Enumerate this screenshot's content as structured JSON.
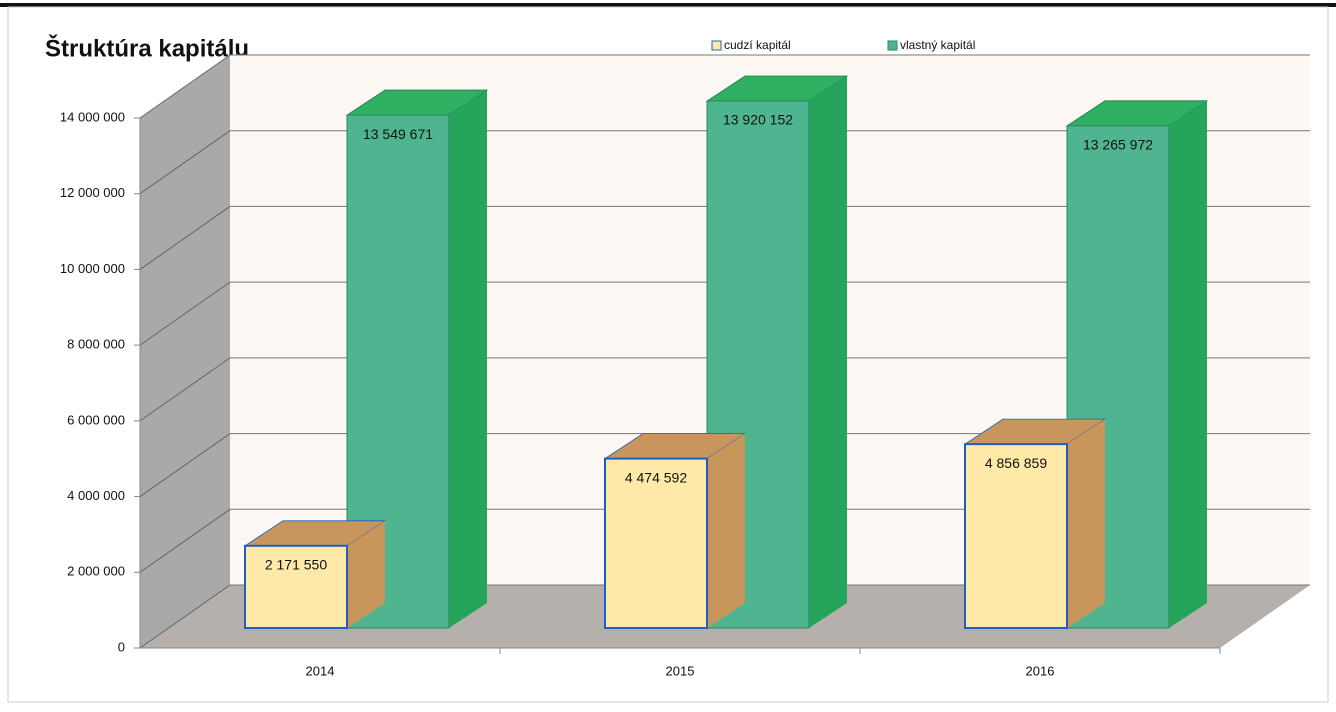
{
  "chart_data": {
    "type": "bar3d",
    "title": "Štruktúra kapitálu",
    "categories": [
      "2014",
      "2015",
      "2016"
    ],
    "series": [
      {
        "name": "cudzí kapitál",
        "color": "#ffe9a8",
        "values": [
          2171550,
          4474592,
          4856859
        ],
        "value_labels": [
          "2 171 550",
          "4 474 592",
          "4 856 859"
        ]
      },
      {
        "name": "vlastný kapitál",
        "color": "#4fb590",
        "values": [
          13549671,
          13920152,
          13265972
        ],
        "value_labels": [
          "13 549 671",
          "13 920 152",
          "13 265 972"
        ]
      }
    ],
    "ylim": [
      0,
      14000000
    ],
    "yticks": [
      {
        "value": 0,
        "label": "0"
      },
      {
        "value": 2000000,
        "label": "2 000 000"
      },
      {
        "value": 4000000,
        "label": "4 000 000"
      },
      {
        "value": 6000000,
        "label": "6 000 000"
      },
      {
        "value": 8000000,
        "label": "8 000 000"
      },
      {
        "value": 10000000,
        "label": "10 000 000"
      },
      {
        "value": 12000000,
        "label": "12 000 000"
      },
      {
        "value": 14000000,
        "label": "14 000 000"
      }
    ],
    "grid": true,
    "legend": "top"
  }
}
